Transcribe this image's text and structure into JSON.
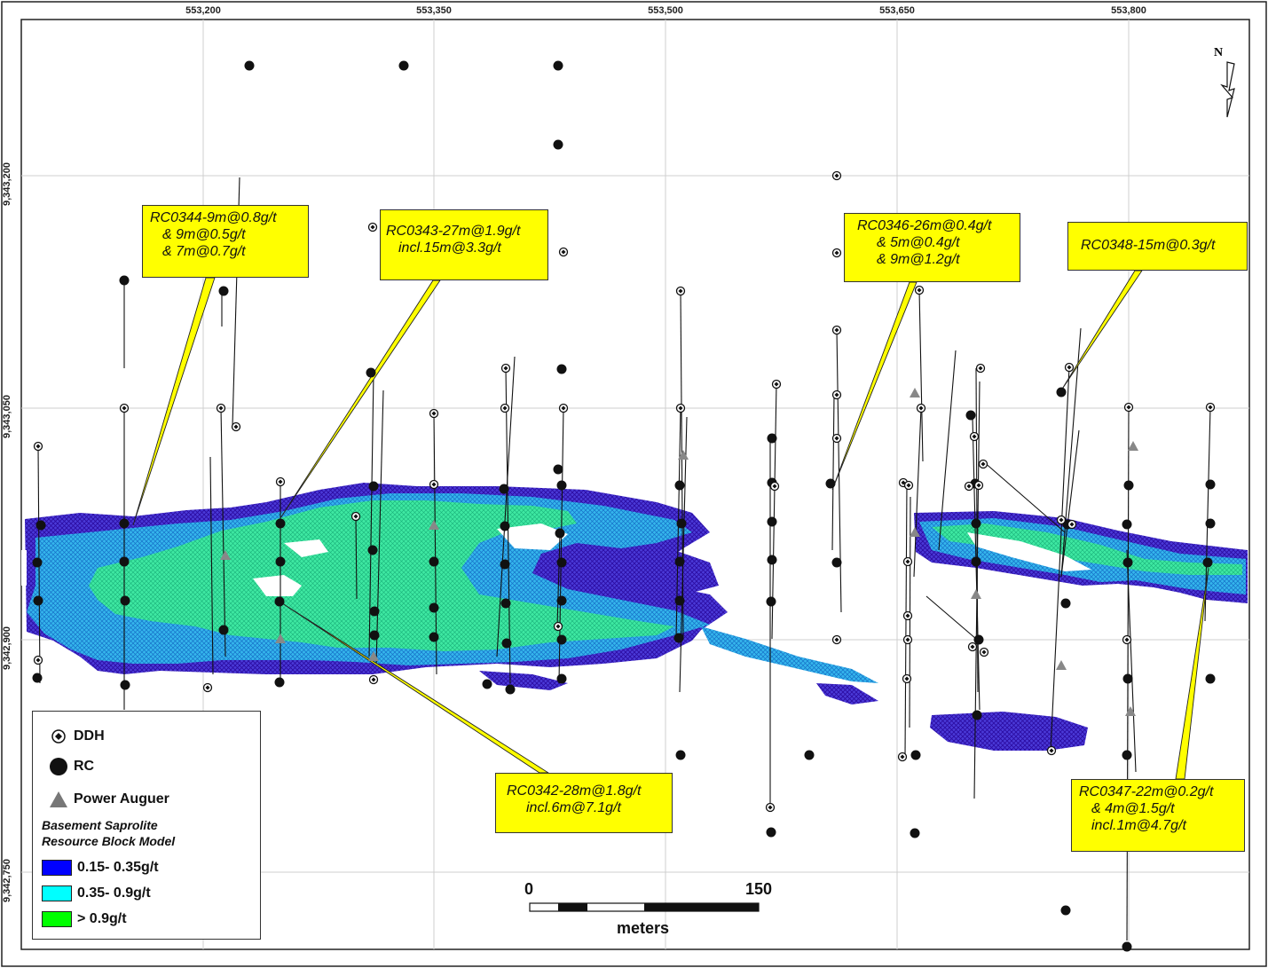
{
  "axes": {
    "x_ticks": [
      "553,200",
      "553,350",
      "553,500",
      "553,650",
      "553,800"
    ],
    "y_ticks": [
      "9,343,200",
      "9,343,050",
      "9,342,900",
      "9,342,750"
    ]
  },
  "north_arrow": {
    "label": "N",
    "icon": "north-arrow-icon"
  },
  "callouts": {
    "rc0344": [
      "RC0344-9m@0.8g/t",
      "& 9m@0.5g/t",
      "& 7m@0.7g/t"
    ],
    "rc0343": [
      "RC0343-27m@1.9g/t",
      "incl.15m@3.3g/t"
    ],
    "rc0346": [
      "RC0346-26m@0.4g/t",
      "& 5m@0.4g/t",
      "& 9m@1.2g/t"
    ],
    "rc0348": [
      "RC0348-15m@0.3g/t"
    ],
    "rc0342": [
      "RC0342-28m@1.8g/t",
      "incl.6m@7.1g/t"
    ],
    "rc0347": [
      "RC0347-22m@0.2g/t",
      "& 4m@1.5g/t",
      "incl.1m@4.7g/t"
    ]
  },
  "legend": {
    "ddh": "DDH",
    "rc": "RC",
    "auger": "Power Auguer",
    "title_line1": "Basement Saprolite",
    "title_line2": "Resource Block Model",
    "classes": [
      {
        "label": "0.15- 0.35g/t",
        "color": "#0000ff"
      },
      {
        "label": "0.35- 0.9g/t",
        "color": "#00ffff"
      },
      {
        "label": "> 0.9g/t",
        "color": "#00ff00"
      }
    ]
  },
  "scale_bar": {
    "start": "0",
    "end": "150",
    "unit": "meters"
  },
  "colors": {
    "low_grade": "#3a22c8",
    "mid_grade": "#1aa6e0",
    "high_grade": "#22e09a",
    "callout": "#ffff00",
    "grid": "#c8c8c8"
  }
}
